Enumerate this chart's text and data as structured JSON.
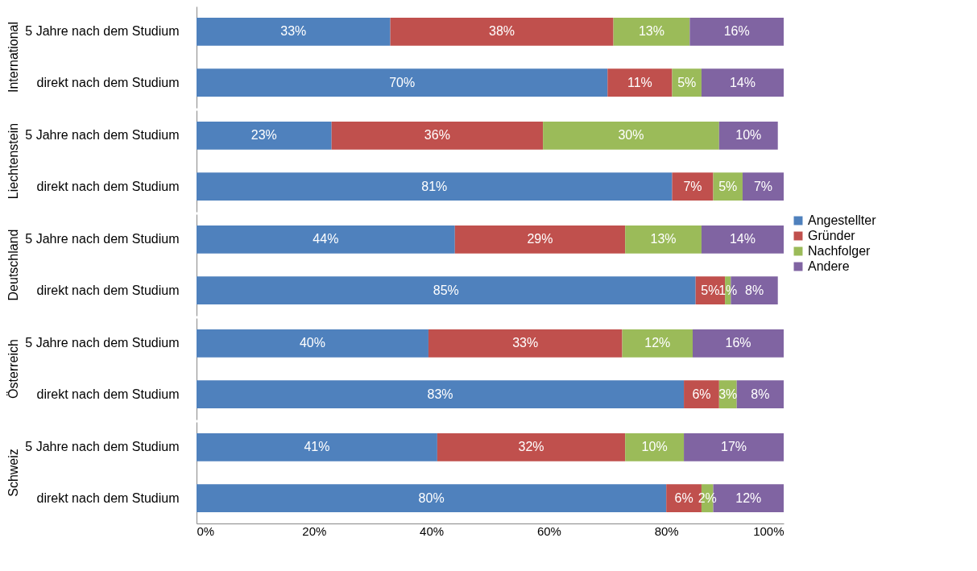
{
  "chart_data": [
    {
      "type": "bar",
      "orientation": "horizontal",
      "stacked": true,
      "title": "International",
      "categories": [
        "5 Jahre nach dem Studium",
        "direkt nach dem Studium"
      ],
      "xlim": [
        0,
        100
      ],
      "tick_labels": "y",
      "series": [
        {
          "color": "#4f81bd",
          "values": [
            33,
            70
          ],
          "value_labels": [
            "33%",
            "70%"
          ]
        },
        {
          "color": "#c0504d",
          "values": [
            38,
            11
          ],
          "value_labels": [
            "38%",
            "11%"
          ]
        },
        {
          "color": "#9bbb59",
          "values": [
            13,
            5
          ],
          "value_labels": [
            "13%",
            "5%"
          ]
        },
        {
          "color": "#8064a2",
          "values": [
            16,
            14
          ],
          "value_labels": [
            "16%",
            "14%"
          ]
        }
      ]
    },
    {
      "type": "bar",
      "orientation": "horizontal",
      "stacked": true,
      "title": "Liechtenstein",
      "categories": [
        "5 Jahre nach dem Studium",
        "direkt nach dem Studium"
      ],
      "xlim": [
        0,
        100
      ],
      "tick_labels": "y",
      "series": [
        {
          "color": "#4f81bd",
          "values": [
            23,
            81
          ],
          "value_labels": [
            "23%",
            "81%"
          ]
        },
        {
          "color": "#c0504d",
          "values": [
            36,
            7
          ],
          "value_labels": [
            "36%",
            "7%"
          ]
        },
        {
          "color": "#9bbb59",
          "values": [
            30,
            5
          ],
          "value_labels": [
            "30%",
            "5%"
          ]
        },
        {
          "color": "#8064a2",
          "values": [
            10,
            7
          ],
          "value_labels": [
            "10%",
            "7%"
          ]
        }
      ]
    },
    {
      "type": "bar",
      "orientation": "horizontal",
      "stacked": true,
      "title": "Deutschland",
      "categories": [
        "5 Jahre nach dem Studium",
        "direkt nach dem Studium"
      ],
      "xlim": [
        0,
        100
      ],
      "tick_labels": "y",
      "legend": "right",
      "series": [
        {
          "name": "Angestellter",
          "color": "#4f81bd",
          "values": [
            44,
            85
          ],
          "value_labels": [
            "44%",
            "85%"
          ]
        },
        {
          "name": "Gründer",
          "color": "#c0504d",
          "values": [
            29,
            5
          ],
          "value_labels": [
            "29%",
            "5%"
          ]
        },
        {
          "name": "Nachfolger",
          "color": "#9bbb59",
          "values": [
            13,
            1
          ],
          "value_labels": [
            "13%",
            "1%"
          ]
        },
        {
          "name": "Andere",
          "color": "#8064a2",
          "values": [
            14,
            8
          ],
          "value_labels": [
            "14%",
            "8%"
          ]
        }
      ]
    },
    {
      "type": "bar",
      "orientation": "horizontal",
      "stacked": true,
      "title": "Österreich",
      "categories": [
        "5 Jahre nach dem Studium",
        "direkt nach dem Studium"
      ],
      "xlim": [
        0,
        100
      ],
      "tick_labels": "y",
      "series": [
        {
          "color": "#4f81bd",
          "values": [
            39.5,
            83
          ],
          "value_labels": [
            "40%",
            "83%"
          ]
        },
        {
          "color": "#c0504d",
          "values": [
            33,
            6
          ],
          "value_labels": [
            "33%",
            "6%"
          ]
        },
        {
          "color": "#9bbb59",
          "values": [
            12,
            3
          ],
          "value_labels": [
            "12%",
            "3%"
          ]
        },
        {
          "color": "#8064a2",
          "values": [
            15.5,
            8
          ],
          "value_labels": [
            "16%",
            "8%"
          ]
        }
      ]
    },
    {
      "type": "bar",
      "orientation": "horizontal",
      "stacked": true,
      "title": "Schweiz",
      "categories": [
        "5 Jahre nach dem Studium",
        "direkt nach dem Studium"
      ],
      "xlim": [
        0,
        100
      ],
      "xticks": [
        {
          "value": 0,
          "label": "0%"
        },
        {
          "value": 20,
          "label": "20%"
        },
        {
          "value": 40,
          "label": "40%"
        },
        {
          "value": 60,
          "label": "60%"
        },
        {
          "value": 80,
          "label": "80%"
        },
        {
          "value": 100,
          "label": "100%"
        }
      ],
      "series": [
        {
          "color": "#4f81bd",
          "values": [
            41,
            80
          ],
          "value_labels": [
            "41%",
            "80%"
          ]
        },
        {
          "color": "#c0504d",
          "values": [
            32,
            6
          ],
          "value_labels": [
            "32%",
            "6%"
          ]
        },
        {
          "color": "#9bbb59",
          "values": [
            10,
            2
          ],
          "value_labels": [
            "10%",
            "2%"
          ]
        },
        {
          "color": "#8064a2",
          "values": [
            17,
            12
          ],
          "value_labels": [
            "17%",
            "12%"
          ]
        }
      ]
    }
  ]
}
